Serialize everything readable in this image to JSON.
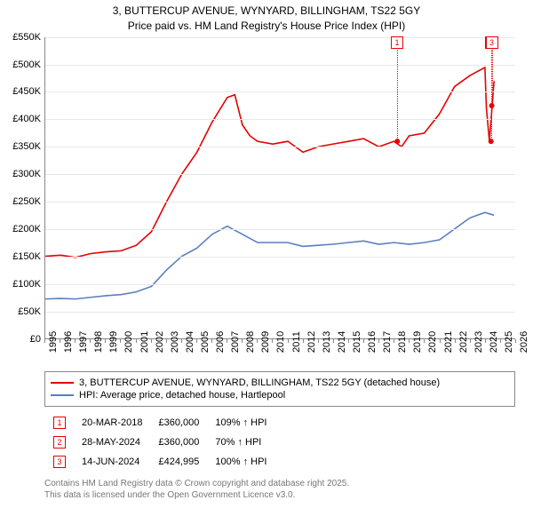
{
  "title_line1": "3, BUTTERCUP AVENUE, WYNYARD, BILLINGHAM, TS22 5GY",
  "title_line2": "Price paid vs. HM Land Registry's House Price Index (HPI)",
  "chart": {
    "type": "line",
    "background_color": "#ffffff",
    "grid_color": "#e8e8e8",
    "axis_color": "#888888",
    "ylim": [
      0,
      550
    ],
    "ytick_step": 50,
    "ytick_labels": [
      "£0",
      "£50K",
      "£100K",
      "£150K",
      "£200K",
      "£250K",
      "£300K",
      "£350K",
      "£400K",
      "£450K",
      "£500K",
      "£550K"
    ],
    "xlim": [
      1995,
      2026
    ],
    "xtick_step": 1,
    "xtick_labels": [
      "1995",
      "1996",
      "1997",
      "1998",
      "1999",
      "2000",
      "2001",
      "2002",
      "2003",
      "2004",
      "2005",
      "2006",
      "2007",
      "2008",
      "2009",
      "2010",
      "2011",
      "2012",
      "2013",
      "2014",
      "2015",
      "2016",
      "2017",
      "2018",
      "2019",
      "2020",
      "2021",
      "2022",
      "2023",
      "2024",
      "2025",
      "2026"
    ],
    "label_fontsize": 11,
    "line_width": 1.6,
    "series": [
      {
        "name": "3, BUTTERCUP AVENUE, WYNYARD, BILLINGHAM, TS22 5GY (detached house)",
        "color": "#e60000",
        "years": [
          1995,
          1996,
          1997,
          1998,
          1999,
          2000,
          2001,
          2002,
          2003,
          2004,
          2005,
          2006,
          2007,
          2007.5,
          2008,
          2008.5,
          2009,
          2010,
          2011,
          2012,
          2013,
          2014,
          2015,
          2016,
          2017,
          2018,
          2018.5,
          2019,
          2020,
          2021,
          2022,
          2023,
          2024,
          2024.1,
          2024.3,
          2024.6
        ],
        "values": [
          150,
          152,
          148,
          155,
          158,
          160,
          170,
          195,
          250,
          300,
          340,
          395,
          440,
          445,
          390,
          370,
          360,
          355,
          360,
          340,
          350,
          355,
          360,
          365,
          350,
          360,
          350,
          370,
          375,
          410,
          460,
          480,
          495,
          420,
          360,
          470
        ]
      },
      {
        "name": "HPI: Average price, detached house, Hartlepool",
        "color": "#5a7fbf",
        "years": [
          1995,
          1996,
          1997,
          1998,
          1999,
          2000,
          2001,
          2002,
          2003,
          2004,
          2005,
          2006,
          2007,
          2008,
          2009,
          2010,
          2011,
          2012,
          2013,
          2014,
          2015,
          2016,
          2017,
          2018,
          2019,
          2020,
          2021,
          2022,
          2023,
          2024,
          2024.6
        ],
        "values": [
          72,
          73,
          72,
          75,
          78,
          80,
          85,
          95,
          125,
          150,
          165,
          190,
          205,
          190,
          175,
          175,
          175,
          168,
          170,
          172,
          175,
          178,
          172,
          175,
          172,
          175,
          180,
          200,
          220,
          230,
          225
        ]
      }
    ],
    "markers": [
      {
        "n": "1",
        "year": 2018.22,
        "value": 360,
        "color": "#e60000",
        "line_bottom": 360
      },
      {
        "n": "2",
        "year": 2024.4,
        "value": 360,
        "color": "#e60000",
        "line_bottom": 360
      },
      {
        "n": "3",
        "year": 2024.45,
        "value": 425,
        "color": "#e60000",
        "line_bottom": 425
      }
    ]
  },
  "legend": [
    {
      "color": "#e60000",
      "text": "3, BUTTERCUP AVENUE, WYNYARD, BILLINGHAM, TS22 5GY (detached house)"
    },
    {
      "color": "#5a7fbf",
      "text": "HPI: Average price, detached house, Hartlepool"
    }
  ],
  "events_header": {
    "date": "",
    "price": "",
    "delta": ""
  },
  "events": [
    {
      "n": "1",
      "color": "#e60000",
      "date": "20-MAR-2018",
      "price": "£360,000",
      "delta": "109% ↑ HPI"
    },
    {
      "n": "2",
      "color": "#e60000",
      "date": "28-MAY-2024",
      "price": "£360,000",
      "delta": "70% ↑ HPI"
    },
    {
      "n": "3",
      "color": "#e60000",
      "date": "14-JUN-2024",
      "price": "£424,995",
      "delta": "100% ↑ HPI"
    }
  ],
  "footer_line1": "Contains HM Land Registry data © Crown copyright and database right 2025.",
  "footer_line2": "This data is licensed under the Open Government Licence v3.0."
}
